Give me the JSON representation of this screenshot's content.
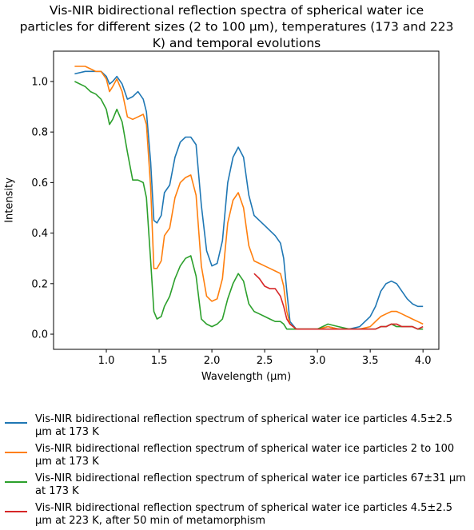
{
  "chart_data": {
    "type": "line",
    "title": [
      "Vis-NIR bidirectional reflection spectra of spherical water ice",
      "particles for different sizes (2 to 100 µm), temperatures (173 and 223",
      "K) and temporal evolutions"
    ],
    "xlabel": "Wavelength (µm)",
    "ylabel": "Intensity",
    "xlim": [
      0.5,
      4.15
    ],
    "ylim": [
      -0.06,
      1.12
    ],
    "xticks": [
      "1.0",
      "1.5",
      "2.0",
      "2.5",
      "3.0",
      "3.5",
      "4.0"
    ],
    "yticks": [
      "0.0",
      "0.2",
      "0.4",
      "0.6",
      "0.8",
      "1.0"
    ],
    "grid": false,
    "legend_position": "below",
    "series": [
      {
        "name": "Vis-NIR bidirectional reflection spectrum of spherical water ice particles 4.5±2.5 µm at 173 K",
        "color": "#1f77b4",
        "x": [
          0.7,
          0.8,
          0.85,
          0.9,
          0.95,
          1.0,
          1.03,
          1.06,
          1.1,
          1.15,
          1.2,
          1.25,
          1.3,
          1.35,
          1.38,
          1.42,
          1.45,
          1.48,
          1.52,
          1.55,
          1.6,
          1.65,
          1.7,
          1.75,
          1.8,
          1.85,
          1.9,
          1.95,
          2.0,
          2.05,
          2.1,
          2.15,
          2.2,
          2.25,
          2.3,
          2.35,
          2.4,
          2.45,
          2.5,
          2.55,
          2.6,
          2.65,
          2.68,
          2.71,
          2.74,
          2.8,
          2.9,
          3.0,
          3.1,
          3.2,
          3.3,
          3.4,
          3.5,
          3.55,
          3.6,
          3.65,
          3.7,
          3.75,
          3.8,
          3.85,
          3.9,
          3.95,
          4.0
        ],
        "y": [
          1.03,
          1.04,
          1.04,
          1.04,
          1.04,
          1.02,
          0.99,
          1.0,
          1.02,
          0.99,
          0.93,
          0.94,
          0.96,
          0.93,
          0.88,
          0.68,
          0.45,
          0.44,
          0.47,
          0.56,
          0.59,
          0.7,
          0.76,
          0.78,
          0.78,
          0.75,
          0.51,
          0.33,
          0.27,
          0.28,
          0.37,
          0.6,
          0.7,
          0.74,
          0.7,
          0.55,
          0.47,
          0.45,
          0.43,
          0.41,
          0.39,
          0.36,
          0.3,
          0.17,
          0.05,
          0.02,
          0.02,
          0.02,
          0.03,
          0.02,
          0.02,
          0.03,
          0.07,
          0.11,
          0.17,
          0.2,
          0.21,
          0.2,
          0.17,
          0.14,
          0.12,
          0.11,
          0.11
        ]
      },
      {
        "name": "Vis-NIR bidirectional reflection spectrum of spherical water ice particles 2 to 100 µm at 173 K",
        "color": "#ff7f0e",
        "x": [
          0.7,
          0.8,
          0.85,
          0.9,
          0.95,
          1.0,
          1.03,
          1.06,
          1.1,
          1.15,
          1.2,
          1.25,
          1.3,
          1.35,
          1.38,
          1.42,
          1.45,
          1.48,
          1.52,
          1.55,
          1.6,
          1.65,
          1.7,
          1.75,
          1.8,
          1.85,
          1.9,
          1.95,
          2.0,
          2.05,
          2.1,
          2.15,
          2.2,
          2.25,
          2.3,
          2.35,
          2.4,
          2.45,
          2.5,
          2.55,
          2.6,
          2.65,
          2.68,
          2.71,
          2.74,
          2.8,
          2.9,
          3.0,
          3.1,
          3.2,
          3.3,
          3.4,
          3.5,
          3.55,
          3.6,
          3.65,
          3.7,
          3.75,
          3.8,
          3.85,
          3.9,
          3.95,
          4.0
        ],
        "y": [
          1.06,
          1.06,
          1.05,
          1.04,
          1.04,
          1.01,
          0.96,
          0.98,
          1.01,
          0.96,
          0.86,
          0.85,
          0.86,
          0.87,
          0.83,
          0.58,
          0.26,
          0.26,
          0.29,
          0.39,
          0.42,
          0.54,
          0.6,
          0.62,
          0.63,
          0.55,
          0.27,
          0.15,
          0.13,
          0.14,
          0.22,
          0.44,
          0.53,
          0.56,
          0.5,
          0.35,
          0.29,
          0.28,
          0.27,
          0.26,
          0.25,
          0.24,
          0.19,
          0.09,
          0.04,
          0.02,
          0.02,
          0.02,
          0.03,
          0.02,
          0.02,
          0.02,
          0.03,
          0.05,
          0.07,
          0.08,
          0.09,
          0.09,
          0.08,
          0.07,
          0.06,
          0.05,
          0.04
        ]
      },
      {
        "name": "Vis-NIR bidirectional reflection spectrum of spherical water ice particles 67±31 µm at 173 K",
        "color": "#2ca02c",
        "x": [
          0.7,
          0.8,
          0.85,
          0.9,
          0.95,
          1.0,
          1.03,
          1.06,
          1.1,
          1.15,
          1.2,
          1.25,
          1.3,
          1.35,
          1.38,
          1.42,
          1.45,
          1.48,
          1.52,
          1.55,
          1.6,
          1.65,
          1.7,
          1.75,
          1.8,
          1.85,
          1.9,
          1.95,
          2.0,
          2.05,
          2.1,
          2.15,
          2.2,
          2.25,
          2.3,
          2.35,
          2.4,
          2.45,
          2.5,
          2.55,
          2.6,
          2.65,
          2.68,
          2.71,
          2.74,
          2.8,
          2.9,
          3.0,
          3.1,
          3.2,
          3.3,
          3.4,
          3.5,
          3.55,
          3.6,
          3.65,
          3.7,
          3.75,
          3.8,
          3.85,
          3.9,
          3.95,
          4.0
        ],
        "y": [
          1.0,
          0.98,
          0.96,
          0.95,
          0.93,
          0.89,
          0.83,
          0.85,
          0.89,
          0.84,
          0.72,
          0.61,
          0.61,
          0.6,
          0.54,
          0.29,
          0.09,
          0.06,
          0.07,
          0.11,
          0.15,
          0.22,
          0.27,
          0.3,
          0.31,
          0.23,
          0.06,
          0.04,
          0.03,
          0.04,
          0.06,
          0.14,
          0.2,
          0.24,
          0.21,
          0.12,
          0.09,
          0.08,
          0.07,
          0.06,
          0.05,
          0.05,
          0.04,
          0.02,
          0.02,
          0.02,
          0.02,
          0.02,
          0.04,
          0.03,
          0.02,
          0.02,
          0.02,
          0.02,
          0.03,
          0.03,
          0.04,
          0.03,
          0.03,
          0.03,
          0.03,
          0.02,
          0.02
        ]
      },
      {
        "name": "Vis-NIR bidirectional reflection spectrum of spherical water ice particles 4.5±2.5 µm at 223 K, after 50 min of metamorphism",
        "color": "#d62728",
        "x": [
          2.4,
          2.45,
          2.5,
          2.55,
          2.6,
          2.65,
          2.68,
          2.71,
          2.74,
          2.8,
          2.9,
          3.0,
          3.1,
          3.2,
          3.3,
          3.4,
          3.5,
          3.55,
          3.6,
          3.65,
          3.7,
          3.75,
          3.8,
          3.85,
          3.9,
          3.95,
          4.0
        ],
        "y": [
          0.24,
          0.22,
          0.19,
          0.18,
          0.18,
          0.15,
          0.11,
          0.06,
          0.04,
          0.02,
          0.02,
          0.02,
          0.02,
          0.02,
          0.02,
          0.02,
          0.02,
          0.02,
          0.03,
          0.03,
          0.04,
          0.04,
          0.03,
          0.03,
          0.03,
          0.02,
          0.03
        ]
      }
    ]
  }
}
